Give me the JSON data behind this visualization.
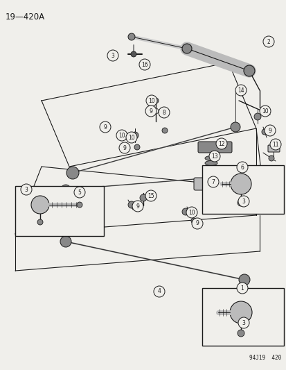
{
  "title": "19—420A",
  "footer": "94J19  420",
  "bg_color": "#f0efeb",
  "line_color": "#1a1a1a",
  "gray_dark": "#555555",
  "gray_mid": "#888888",
  "gray_light": "#bbbbbb",
  "white": "#f0efeb"
}
